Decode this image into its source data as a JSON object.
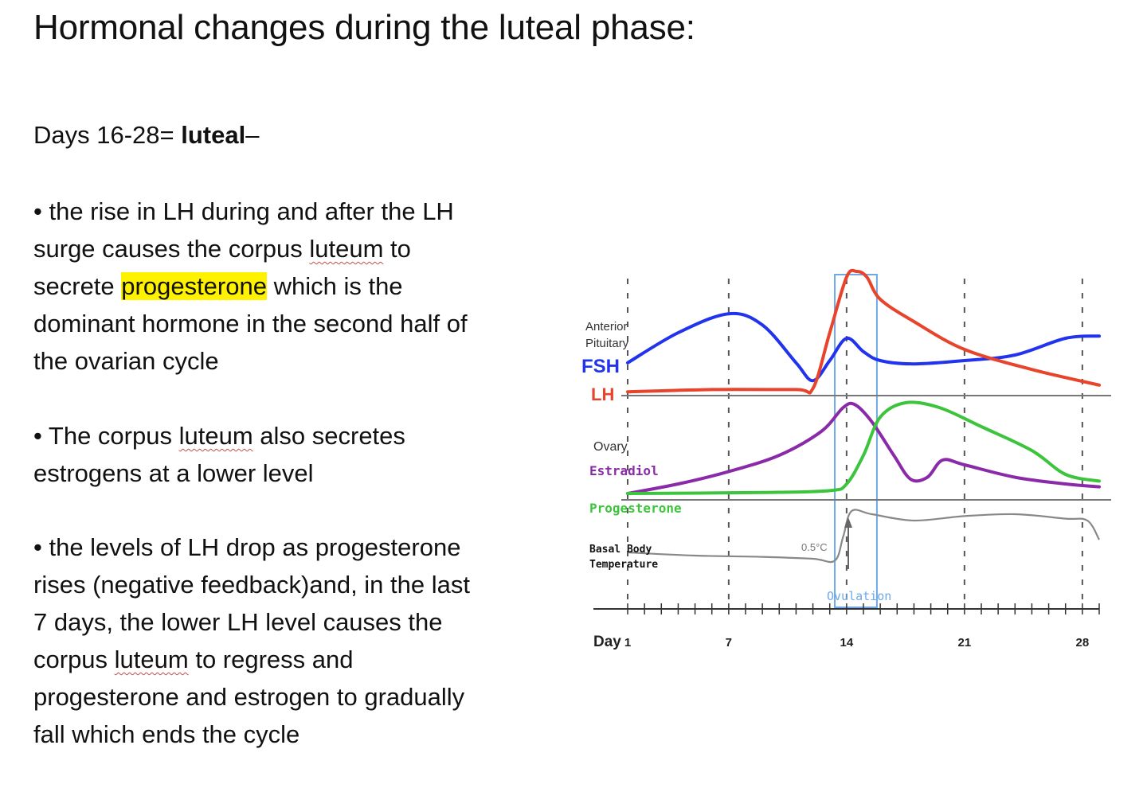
{
  "title": "Hormonal changes during the luteal phase:",
  "subhead": {
    "prefix": "Days 16-28= ",
    "bold": "luteal",
    "suffix": "–"
  },
  "paragraphs": {
    "p1": {
      "l1": "• the rise in LH during and after the LH",
      "l2a": "surge causes the corpus ",
      "l2b": "luteum",
      "l2c": " to",
      "l3a": "secrete ",
      "l3b": "progesterone",
      "l3c": " which is the",
      "l4": "dominant hormone in the second half of",
      "l5": "the ovarian cycle"
    },
    "p2": {
      "l1a": "• The corpus ",
      "l1b": "luteum",
      "l1c": " also secretes",
      "l2": "estrogens at a lower level"
    },
    "p3": {
      "l1": "• the levels of LH drop as progesterone",
      "l2": "rises (negative feedback)and, in the last",
      "l3": "7 days, the lower LH level causes the",
      "l4a": "corpus ",
      "l4b": "luteum",
      "l4c": " to regress and",
      "l5": "progesterone and estrogen to gradually",
      "l6": "fall which ends the cycle"
    }
  },
  "chart": {
    "labels": {
      "anterior": "Anterior",
      "pituitary": "Pituitary",
      "fsh": "FSH",
      "lh": "LH",
      "ovary": "Ovary",
      "estradiol": "Estradiol",
      "progesterone": "Progesterone",
      "basal": "Basal Body",
      "temperature": "Temperature",
      "delta": "0.5°C",
      "ovulation": "Ovulation",
      "day": "Day"
    },
    "colors": {
      "fsh": "#2233ee",
      "lh": "#e8432b",
      "estradiol": "#8a2aa8",
      "progesterone": "#3cc43c",
      "temperature": "#888888",
      "ovulation_box": "#6fa8e8"
    },
    "days": [
      "1",
      "7",
      "14",
      "21",
      "28"
    ],
    "day_values": [
      1,
      7,
      14,
      21,
      28
    ],
    "series": {
      "fsh": [
        [
          0,
          0.28
        ],
        [
          3,
          0.55
        ],
        [
          6,
          0.72
        ],
        [
          8,
          0.62
        ],
        [
          10,
          0.28
        ],
        [
          11,
          0.12
        ],
        [
          12,
          0.3
        ],
        [
          13,
          0.5
        ],
        [
          14,
          0.38
        ],
        [
          15,
          0.3
        ],
        [
          17,
          0.27
        ],
        [
          20,
          0.3
        ],
        [
          23,
          0.35
        ],
        [
          26,
          0.5
        ],
        [
          28,
          0.52
        ]
      ],
      "lh": [
        [
          0,
          0.02
        ],
        [
          5,
          0.04
        ],
        [
          10,
          0.04
        ],
        [
          11,
          0.05
        ],
        [
          12,
          0.55
        ],
        [
          13,
          1.05
        ],
        [
          13.6,
          1.1
        ],
        [
          14.2,
          1.05
        ],
        [
          15,
          0.85
        ],
        [
          17,
          0.65
        ],
        [
          20,
          0.4
        ],
        [
          24,
          0.22
        ],
        [
          28,
          0.08
        ]
      ],
      "estradiol": [
        [
          0,
          0.05
        ],
        [
          3,
          0.15
        ],
        [
          6,
          0.28
        ],
        [
          9,
          0.45
        ],
        [
          11.5,
          0.7
        ],
        [
          12.8,
          0.95
        ],
        [
          13.5,
          0.98
        ],
        [
          14.5,
          0.8
        ],
        [
          15.8,
          0.45
        ],
        [
          16.8,
          0.2
        ],
        [
          17.8,
          0.22
        ],
        [
          18.7,
          0.4
        ],
        [
          20,
          0.35
        ],
        [
          23,
          0.22
        ],
        [
          26,
          0.15
        ],
        [
          28,
          0.12
        ]
      ],
      "progesterone": [
        [
          0,
          0.05
        ],
        [
          8,
          0.06
        ],
        [
          12,
          0.08
        ],
        [
          13,
          0.15
        ],
        [
          14,
          0.45
        ],
        [
          15,
          0.85
        ],
        [
          16.5,
          1.0
        ],
        [
          18.5,
          0.95
        ],
        [
          21,
          0.75
        ],
        [
          24,
          0.5
        ],
        [
          26,
          0.25
        ],
        [
          28,
          0.18
        ]
      ],
      "temperature": [
        [
          0,
          0.35
        ],
        [
          4,
          0.3
        ],
        [
          8,
          0.28
        ],
        [
          11,
          0.25
        ],
        [
          12.3,
          0.22
        ],
        [
          12.8,
          0.6
        ],
        [
          13.3,
          1.0
        ],
        [
          14.5,
          0.95
        ],
        [
          17,
          0.85
        ],
        [
          20,
          0.92
        ],
        [
          23,
          0.95
        ],
        [
          26,
          0.88
        ],
        [
          27.3,
          0.85
        ],
        [
          28,
          0.55
        ]
      ]
    }
  }
}
